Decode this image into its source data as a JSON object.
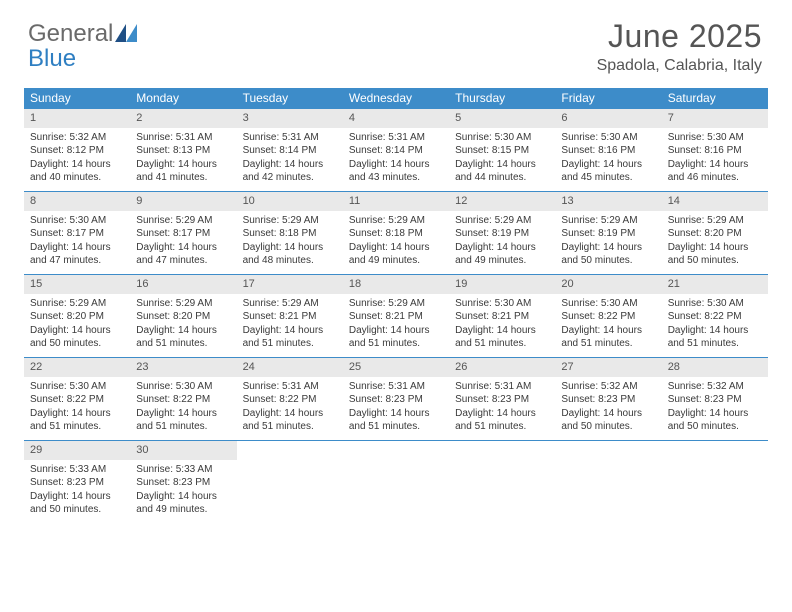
{
  "brand": {
    "name_part1": "General",
    "name_part2": "Blue",
    "text_color_gray": "#6a6a6a",
    "text_color_blue": "#2f7fc2",
    "mark_color": "#1f4f85"
  },
  "header": {
    "month_year": "June 2025",
    "location": "Spadola, Calabria, Italy",
    "title_color": "#555555",
    "title_fontsize": 32,
    "location_fontsize": 16
  },
  "colors": {
    "weekday_header_bg": "#3d8cc9",
    "weekday_header_text": "#ffffff",
    "day_number_bg": "#e9e9e9",
    "day_number_text": "#555555",
    "row_border": "#3d8cc9",
    "body_text": "#3a3a3a",
    "page_bg": "#ffffff"
  },
  "weekdays": [
    "Sunday",
    "Monday",
    "Tuesday",
    "Wednesday",
    "Thursday",
    "Friday",
    "Saturday"
  ],
  "weeks": [
    [
      {
        "day": "1",
        "sunrise": "Sunrise: 5:32 AM",
        "sunset": "Sunset: 8:12 PM",
        "daylight1": "Daylight: 14 hours",
        "daylight2": "and 40 minutes."
      },
      {
        "day": "2",
        "sunrise": "Sunrise: 5:31 AM",
        "sunset": "Sunset: 8:13 PM",
        "daylight1": "Daylight: 14 hours",
        "daylight2": "and 41 minutes."
      },
      {
        "day": "3",
        "sunrise": "Sunrise: 5:31 AM",
        "sunset": "Sunset: 8:14 PM",
        "daylight1": "Daylight: 14 hours",
        "daylight2": "and 42 minutes."
      },
      {
        "day": "4",
        "sunrise": "Sunrise: 5:31 AM",
        "sunset": "Sunset: 8:14 PM",
        "daylight1": "Daylight: 14 hours",
        "daylight2": "and 43 minutes."
      },
      {
        "day": "5",
        "sunrise": "Sunrise: 5:30 AM",
        "sunset": "Sunset: 8:15 PM",
        "daylight1": "Daylight: 14 hours",
        "daylight2": "and 44 minutes."
      },
      {
        "day": "6",
        "sunrise": "Sunrise: 5:30 AM",
        "sunset": "Sunset: 8:16 PM",
        "daylight1": "Daylight: 14 hours",
        "daylight2": "and 45 minutes."
      },
      {
        "day": "7",
        "sunrise": "Sunrise: 5:30 AM",
        "sunset": "Sunset: 8:16 PM",
        "daylight1": "Daylight: 14 hours",
        "daylight2": "and 46 minutes."
      }
    ],
    [
      {
        "day": "8",
        "sunrise": "Sunrise: 5:30 AM",
        "sunset": "Sunset: 8:17 PM",
        "daylight1": "Daylight: 14 hours",
        "daylight2": "and 47 minutes."
      },
      {
        "day": "9",
        "sunrise": "Sunrise: 5:29 AM",
        "sunset": "Sunset: 8:17 PM",
        "daylight1": "Daylight: 14 hours",
        "daylight2": "and 47 minutes."
      },
      {
        "day": "10",
        "sunrise": "Sunrise: 5:29 AM",
        "sunset": "Sunset: 8:18 PM",
        "daylight1": "Daylight: 14 hours",
        "daylight2": "and 48 minutes."
      },
      {
        "day": "11",
        "sunrise": "Sunrise: 5:29 AM",
        "sunset": "Sunset: 8:18 PM",
        "daylight1": "Daylight: 14 hours",
        "daylight2": "and 49 minutes."
      },
      {
        "day": "12",
        "sunrise": "Sunrise: 5:29 AM",
        "sunset": "Sunset: 8:19 PM",
        "daylight1": "Daylight: 14 hours",
        "daylight2": "and 49 minutes."
      },
      {
        "day": "13",
        "sunrise": "Sunrise: 5:29 AM",
        "sunset": "Sunset: 8:19 PM",
        "daylight1": "Daylight: 14 hours",
        "daylight2": "and 50 minutes."
      },
      {
        "day": "14",
        "sunrise": "Sunrise: 5:29 AM",
        "sunset": "Sunset: 8:20 PM",
        "daylight1": "Daylight: 14 hours",
        "daylight2": "and 50 minutes."
      }
    ],
    [
      {
        "day": "15",
        "sunrise": "Sunrise: 5:29 AM",
        "sunset": "Sunset: 8:20 PM",
        "daylight1": "Daylight: 14 hours",
        "daylight2": "and 50 minutes."
      },
      {
        "day": "16",
        "sunrise": "Sunrise: 5:29 AM",
        "sunset": "Sunset: 8:20 PM",
        "daylight1": "Daylight: 14 hours",
        "daylight2": "and 51 minutes."
      },
      {
        "day": "17",
        "sunrise": "Sunrise: 5:29 AM",
        "sunset": "Sunset: 8:21 PM",
        "daylight1": "Daylight: 14 hours",
        "daylight2": "and 51 minutes."
      },
      {
        "day": "18",
        "sunrise": "Sunrise: 5:29 AM",
        "sunset": "Sunset: 8:21 PM",
        "daylight1": "Daylight: 14 hours",
        "daylight2": "and 51 minutes."
      },
      {
        "day": "19",
        "sunrise": "Sunrise: 5:30 AM",
        "sunset": "Sunset: 8:21 PM",
        "daylight1": "Daylight: 14 hours",
        "daylight2": "and 51 minutes."
      },
      {
        "day": "20",
        "sunrise": "Sunrise: 5:30 AM",
        "sunset": "Sunset: 8:22 PM",
        "daylight1": "Daylight: 14 hours",
        "daylight2": "and 51 minutes."
      },
      {
        "day": "21",
        "sunrise": "Sunrise: 5:30 AM",
        "sunset": "Sunset: 8:22 PM",
        "daylight1": "Daylight: 14 hours",
        "daylight2": "and 51 minutes."
      }
    ],
    [
      {
        "day": "22",
        "sunrise": "Sunrise: 5:30 AM",
        "sunset": "Sunset: 8:22 PM",
        "daylight1": "Daylight: 14 hours",
        "daylight2": "and 51 minutes."
      },
      {
        "day": "23",
        "sunrise": "Sunrise: 5:30 AM",
        "sunset": "Sunset: 8:22 PM",
        "daylight1": "Daylight: 14 hours",
        "daylight2": "and 51 minutes."
      },
      {
        "day": "24",
        "sunrise": "Sunrise: 5:31 AM",
        "sunset": "Sunset: 8:22 PM",
        "daylight1": "Daylight: 14 hours",
        "daylight2": "and 51 minutes."
      },
      {
        "day": "25",
        "sunrise": "Sunrise: 5:31 AM",
        "sunset": "Sunset: 8:23 PM",
        "daylight1": "Daylight: 14 hours",
        "daylight2": "and 51 minutes."
      },
      {
        "day": "26",
        "sunrise": "Sunrise: 5:31 AM",
        "sunset": "Sunset: 8:23 PM",
        "daylight1": "Daylight: 14 hours",
        "daylight2": "and 51 minutes."
      },
      {
        "day": "27",
        "sunrise": "Sunrise: 5:32 AM",
        "sunset": "Sunset: 8:23 PM",
        "daylight1": "Daylight: 14 hours",
        "daylight2": "and 50 minutes."
      },
      {
        "day": "28",
        "sunrise": "Sunrise: 5:32 AM",
        "sunset": "Sunset: 8:23 PM",
        "daylight1": "Daylight: 14 hours",
        "daylight2": "and 50 minutes."
      }
    ],
    [
      {
        "day": "29",
        "sunrise": "Sunrise: 5:33 AM",
        "sunset": "Sunset: 8:23 PM",
        "daylight1": "Daylight: 14 hours",
        "daylight2": "and 50 minutes."
      },
      {
        "day": "30",
        "sunrise": "Sunrise: 5:33 AM",
        "sunset": "Sunset: 8:23 PM",
        "daylight1": "Daylight: 14 hours",
        "daylight2": "and 49 minutes."
      },
      null,
      null,
      null,
      null,
      null
    ]
  ]
}
